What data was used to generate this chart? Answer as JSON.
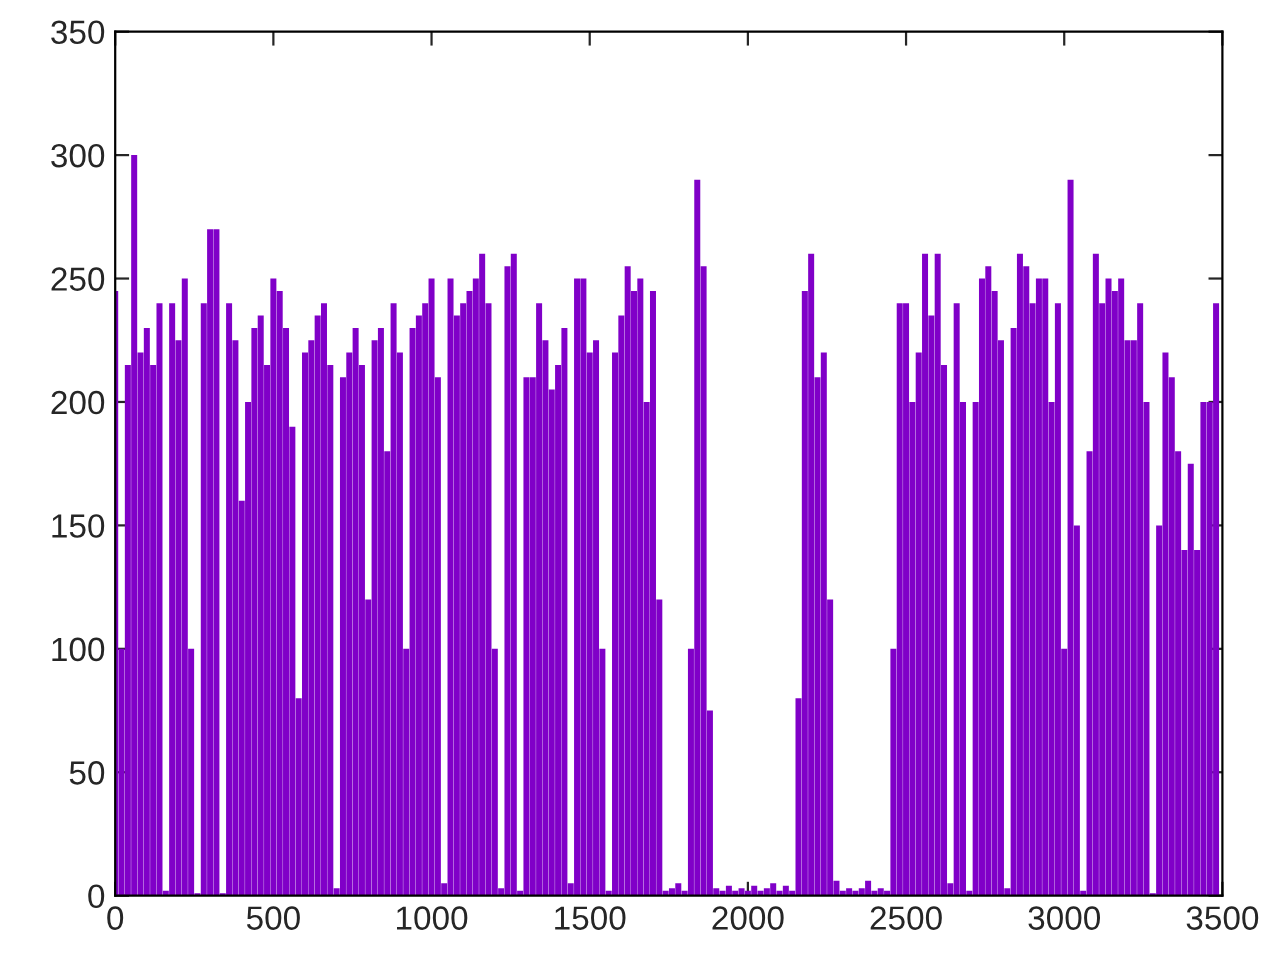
{
  "chart_data": {
    "type": "bar",
    "color": "#8000c8",
    "x": [
      0,
      20,
      40,
      60,
      80,
      100,
      120,
      140,
      160,
      180,
      200,
      220,
      240,
      260,
      280,
      300,
      320,
      340,
      360,
      380,
      400,
      420,
      440,
      460,
      480,
      500,
      520,
      540,
      560,
      580,
      600,
      620,
      640,
      660,
      680,
      700,
      720,
      740,
      760,
      780,
      800,
      820,
      840,
      860,
      880,
      900,
      920,
      940,
      960,
      980,
      1000,
      1020,
      1040,
      1060,
      1080,
      1100,
      1120,
      1140,
      1160,
      1180,
      1200,
      1220,
      1240,
      1260,
      1280,
      1300,
      1320,
      1340,
      1360,
      1380,
      1400,
      1420,
      1440,
      1460,
      1480,
      1500,
      1520,
      1540,
      1560,
      1580,
      1600,
      1620,
      1640,
      1660,
      1680,
      1700,
      1720,
      1740,
      1760,
      1780,
      1800,
      1820,
      1840,
      1860,
      1880,
      1900,
      1920,
      1940,
      1960,
      1980,
      2000,
      2020,
      2040,
      2060,
      2080,
      2100,
      2120,
      2140,
      2160,
      2180,
      2200,
      2220,
      2240,
      2260,
      2280,
      2300,
      2320,
      2340,
      2360,
      2380,
      2400,
      2420,
      2440,
      2460,
      2480,
      2500,
      2520,
      2540,
      2560,
      2580,
      2600,
      2620,
      2640,
      2660,
      2680,
      2700,
      2720,
      2740,
      2760,
      2780,
      2800,
      2820,
      2840,
      2860,
      2880,
      2900,
      2920,
      2940,
      2960,
      2980,
      3000,
      3020,
      3040,
      3060,
      3080,
      3100,
      3120,
      3140,
      3160,
      3180,
      3200,
      3220,
      3240,
      3260,
      3280,
      3300,
      3320,
      3340,
      3360,
      3380,
      3400,
      3420,
      3440,
      3460,
      3480
    ],
    "values": [
      245,
      100,
      215,
      300,
      220,
      230,
      215,
      240,
      2,
      240,
      225,
      250,
      100,
      1,
      240,
      270,
      270,
      1,
      240,
      225,
      160,
      200,
      230,
      235,
      215,
      250,
      245,
      230,
      190,
      80,
      220,
      225,
      235,
      240,
      215,
      3,
      210,
      220,
      230,
      215,
      120,
      225,
      230,
      180,
      240,
      220,
      100,
      230,
      235,
      240,
      250,
      210,
      5,
      250,
      235,
      240,
      245,
      250,
      260,
      240,
      100,
      3,
      255,
      260,
      2,
      210,
      210,
      240,
      225,
      205,
      215,
      230,
      5,
      250,
      250,
      220,
      225,
      100,
      2,
      220,
      235,
      255,
      245,
      250,
      200,
      245,
      120,
      2,
      3,
      5,
      2,
      100,
      290,
      255,
      75,
      3,
      2,
      4,
      2,
      3,
      2,
      4,
      2,
      3,
      5,
      2,
      4,
      2,
      80,
      245,
      260,
      210,
      220,
      120,
      6,
      2,
      3,
      2,
      3,
      6,
      2,
      3,
      2,
      100,
      240,
      240,
      200,
      220,
      260,
      235,
      260,
      215,
      5,
      240,
      200,
      2,
      200,
      250,
      255,
      245,
      225,
      3,
      230,
      260,
      255,
      240,
      250,
      250,
      200,
      240,
      100,
      290,
      150,
      2,
      180,
      260,
      240,
      250,
      245,
      250,
      225,
      225,
      240,
      200,
      1,
      150,
      220,
      210,
      180,
      140,
      175,
      140,
      200,
      200,
      240
    ],
    "xlim": [
      0,
      3500
    ],
    "xticks": [
      0,
      500,
      1000,
      1500,
      2000,
      2500,
      3000,
      3500
    ],
    "ylim": [
      0,
      350
    ],
    "yticks": [
      0,
      50,
      100,
      150,
      200,
      250,
      300,
      350
    ],
    "grid": false,
    "legend": false
  }
}
